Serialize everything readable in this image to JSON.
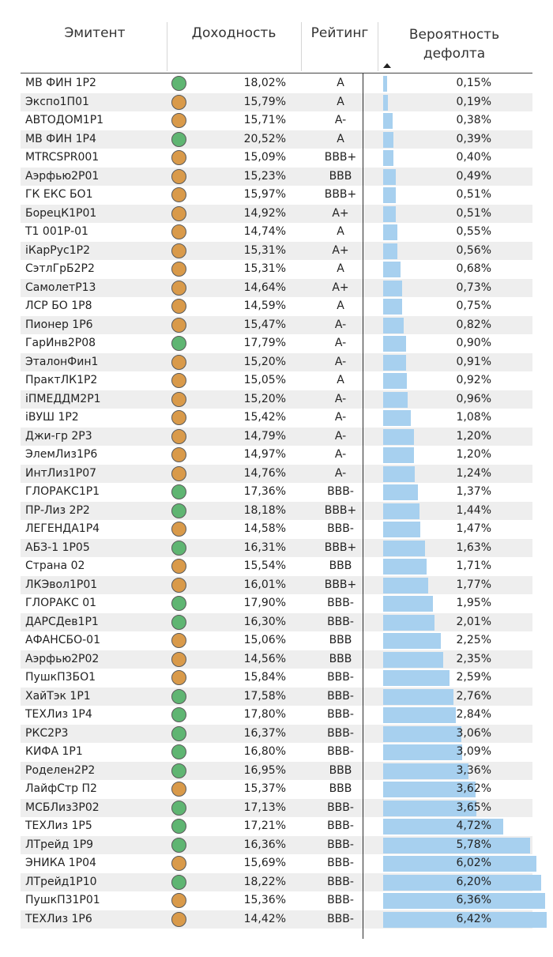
{
  "columns": {
    "issuer": "Эмитент",
    "yield": "Доходность",
    "rating": "Рейтинг",
    "pd_line1": "Вероятность",
    "pd_line2": "дефолта"
  },
  "colors": {
    "green": "#5fb572",
    "orange": "#d99a4a",
    "bar": "#a7d0ef"
  },
  "rows": [
    {
      "name": "МВ ФИН 1Р2",
      "status": "green",
      "yield": "18,02%",
      "rating": "A",
      "pd": 0.15,
      "pd_label": "0,15%"
    },
    {
      "name": "Экспо1П01",
      "status": "orange",
      "yield": "15,79%",
      "rating": "A",
      "pd": 0.19,
      "pd_label": "0,19%"
    },
    {
      "name": "АВТОДОМ1Р1",
      "status": "orange",
      "yield": "15,71%",
      "rating": "A-",
      "pd": 0.38,
      "pd_label": "0,38%"
    },
    {
      "name": "МВ ФИН 1Р4",
      "status": "green",
      "yield": "20,52%",
      "rating": "A",
      "pd": 0.39,
      "pd_label": "0,39%"
    },
    {
      "name": "MTRCSPR001",
      "status": "orange",
      "yield": "15,09%",
      "rating": "BBB+",
      "pd": 0.4,
      "pd_label": "0,40%"
    },
    {
      "name": "Аэрфью2Р01",
      "status": "orange",
      "yield": "15,23%",
      "rating": "BBB",
      "pd": 0.49,
      "pd_label": "0,49%"
    },
    {
      "name": "ГК ЕКС БО1",
      "status": "orange",
      "yield": "15,97%",
      "rating": "BBB+",
      "pd": 0.51,
      "pd_label": "0,51%"
    },
    {
      "name": "БорецК1Р01",
      "status": "orange",
      "yield": "14,92%",
      "rating": "A+",
      "pd": 0.51,
      "pd_label": "0,51%"
    },
    {
      "name": "Т1 001Р-01",
      "status": "orange",
      "yield": "14,74%",
      "rating": "A",
      "pd": 0.55,
      "pd_label": "0,55%"
    },
    {
      "name": "iКарРус1Р2",
      "status": "orange",
      "yield": "15,31%",
      "rating": "A+",
      "pd": 0.56,
      "pd_label": "0,56%"
    },
    {
      "name": "СэтлГрБ2Р2",
      "status": "orange",
      "yield": "15,31%",
      "rating": "A",
      "pd": 0.68,
      "pd_label": "0,68%"
    },
    {
      "name": "СамолетР13",
      "status": "orange",
      "yield": "14,64%",
      "rating": "A+",
      "pd": 0.73,
      "pd_label": "0,73%"
    },
    {
      "name": "ЛСР БО 1Р8",
      "status": "orange",
      "yield": "14,59%",
      "rating": "A",
      "pd": 0.75,
      "pd_label": "0,75%"
    },
    {
      "name": "Пионер 1Р6",
      "status": "orange",
      "yield": "15,47%",
      "rating": "A-",
      "pd": 0.82,
      "pd_label": "0,82%"
    },
    {
      "name": "ГарИнв2Р08",
      "status": "green",
      "yield": "17,79%",
      "rating": "A-",
      "pd": 0.9,
      "pd_label": "0,90%"
    },
    {
      "name": "ЭталонФин1",
      "status": "orange",
      "yield": "15,20%",
      "rating": "A-",
      "pd": 0.91,
      "pd_label": "0,91%"
    },
    {
      "name": "ПрактЛК1Р2",
      "status": "orange",
      "yield": "15,05%",
      "rating": "A",
      "pd": 0.92,
      "pd_label": "0,92%"
    },
    {
      "name": "iПМЕДДМ2Р1",
      "status": "orange",
      "yield": "15,20%",
      "rating": "A-",
      "pd": 0.96,
      "pd_label": "0,96%"
    },
    {
      "name": "iВУШ 1Р2",
      "status": "orange",
      "yield": "15,42%",
      "rating": "A-",
      "pd": 1.08,
      "pd_label": "1,08%"
    },
    {
      "name": "Джи-гр 2Р3",
      "status": "orange",
      "yield": "14,79%",
      "rating": "A-",
      "pd": 1.2,
      "pd_label": "1,20%"
    },
    {
      "name": "ЭлемЛиз1Р6",
      "status": "orange",
      "yield": "14,97%",
      "rating": "A-",
      "pd": 1.2,
      "pd_label": "1,20%"
    },
    {
      "name": "ИнтЛиз1Р07",
      "status": "orange",
      "yield": "14,76%",
      "rating": "A-",
      "pd": 1.24,
      "pd_label": "1,24%"
    },
    {
      "name": "ГЛОРАКС1Р1",
      "status": "green",
      "yield": "17,36%",
      "rating": "BBB-",
      "pd": 1.37,
      "pd_label": "1,37%"
    },
    {
      "name": "ПР-Лиз 2Р2",
      "status": "green",
      "yield": "18,18%",
      "rating": "BBB+",
      "pd": 1.44,
      "pd_label": "1,44%"
    },
    {
      "name": "ЛЕГЕНДА1Р4",
      "status": "orange",
      "yield": "14,58%",
      "rating": "BBB-",
      "pd": 1.47,
      "pd_label": "1,47%"
    },
    {
      "name": "АБЗ-1 1Р05",
      "status": "green",
      "yield": "16,31%",
      "rating": "BBB+",
      "pd": 1.63,
      "pd_label": "1,63%"
    },
    {
      "name": "Страна 02",
      "status": "orange",
      "yield": "15,54%",
      "rating": "BBB",
      "pd": 1.71,
      "pd_label": "1,71%"
    },
    {
      "name": "ЛКЭвол1Р01",
      "status": "orange",
      "yield": "16,01%",
      "rating": "BBB+",
      "pd": 1.77,
      "pd_label": "1,77%"
    },
    {
      "name": "ГЛОРАКС 01",
      "status": "green",
      "yield": "17,90%",
      "rating": "BBB-",
      "pd": 1.95,
      "pd_label": "1,95%"
    },
    {
      "name": "ДАРСДев1Р1",
      "status": "green",
      "yield": "16,30%",
      "rating": "BBB-",
      "pd": 2.01,
      "pd_label": "2,01%"
    },
    {
      "name": "АФАНСБО-01",
      "status": "orange",
      "yield": "15,06%",
      "rating": "BBB",
      "pd": 2.25,
      "pd_label": "2,25%"
    },
    {
      "name": "Аэрфью2Р02",
      "status": "orange",
      "yield": "14,56%",
      "rating": "BBB",
      "pd": 2.35,
      "pd_label": "2,35%"
    },
    {
      "name": "ПушкП3БО1",
      "status": "orange",
      "yield": "15,84%",
      "rating": "BBB-",
      "pd": 2.59,
      "pd_label": "2,59%"
    },
    {
      "name": "ХайТэк 1Р1",
      "status": "green",
      "yield": "17,58%",
      "rating": "BBB-",
      "pd": 2.76,
      "pd_label": "2,76%"
    },
    {
      "name": "ТЕХЛиз 1Р4",
      "status": "green",
      "yield": "17,80%",
      "rating": "BBB-",
      "pd": 2.84,
      "pd_label": "2,84%"
    },
    {
      "name": "РКС2Р3",
      "status": "green",
      "yield": "16,37%",
      "rating": "BBB-",
      "pd": 3.06,
      "pd_label": "3,06%"
    },
    {
      "name": "КИФА 1Р1",
      "status": "green",
      "yield": "16,80%",
      "rating": "BBB-",
      "pd": 3.09,
      "pd_label": "3,09%"
    },
    {
      "name": "Роделен2Р2",
      "status": "green",
      "yield": "16,95%",
      "rating": "BBB",
      "pd": 3.36,
      "pd_label": "3,36%"
    },
    {
      "name": "ЛайфСтр П2",
      "status": "orange",
      "yield": "15,37%",
      "rating": "BBB",
      "pd": 3.62,
      "pd_label": "3,62%"
    },
    {
      "name": "МСБЛиз3Р02",
      "status": "green",
      "yield": "17,13%",
      "rating": "BBB-",
      "pd": 3.65,
      "pd_label": "3,65%"
    },
    {
      "name": "ТЕХЛиз 1Р5",
      "status": "green",
      "yield": "17,21%",
      "rating": "BBB-",
      "pd": 4.72,
      "pd_label": "4,72%"
    },
    {
      "name": "ЛТрейд 1Р9",
      "status": "green",
      "yield": "16,36%",
      "rating": "BBB-",
      "pd": 5.78,
      "pd_label": "5,78%"
    },
    {
      "name": "ЭНИКА 1Р04",
      "status": "orange",
      "yield": "15,69%",
      "rating": "BBB-",
      "pd": 6.02,
      "pd_label": "6,02%"
    },
    {
      "name": "ЛТрейд1Р10",
      "status": "green",
      "yield": "18,22%",
      "rating": "BBB-",
      "pd": 6.2,
      "pd_label": "6,20%"
    },
    {
      "name": "ПушкП31Р01",
      "status": "orange",
      "yield": "15,36%",
      "rating": "BBB-",
      "pd": 6.36,
      "pd_label": "6,36%"
    },
    {
      "name": "ТЕХЛиз 1Р6",
      "status": "orange",
      "yield": "14,42%",
      "rating": "BBB-",
      "pd": 6.42,
      "pd_label": "6,42%"
    }
  ]
}
